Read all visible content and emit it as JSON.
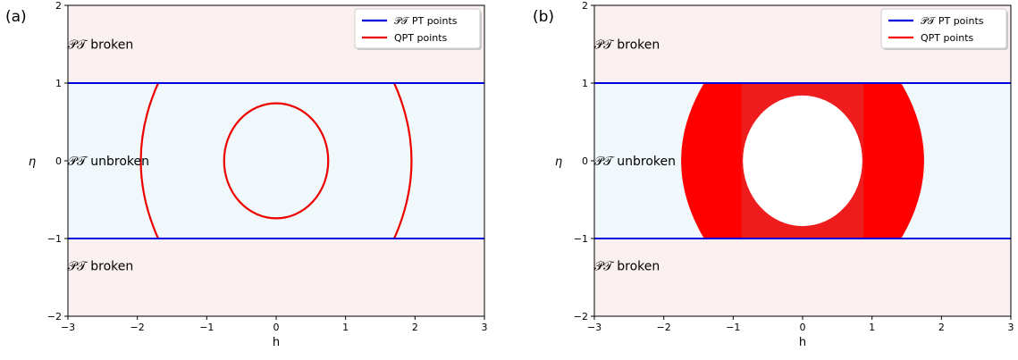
{
  "chart_data": [
    {
      "type": "line",
      "panel_label": "(a)",
      "xlabel": "h",
      "ylabel": "η",
      "xlim": [
        -3,
        3
      ],
      "ylim": [
        -2,
        2
      ],
      "xticks": [
        -3,
        -2,
        -1,
        0,
        1,
        2,
        3
      ],
      "yticks": [
        -2,
        -1,
        0,
        1,
        2
      ],
      "xtick_labels": [
        "−3",
        "−2",
        "−1",
        "0",
        "1",
        "2",
        "3"
      ],
      "ytick_labels": [
        "−2",
        "−1",
        "0",
        "1",
        "2"
      ],
      "grid": false,
      "legend_position": "top-right",
      "region_labels": [
        {
          "text": "𝒫𝒯 broken",
          "h": -3,
          "eta": 1.5
        },
        {
          "text": "𝒫𝒯 unbroken",
          "h": -3,
          "eta": 0
        },
        {
          "text": "𝒫𝒯 broken",
          "h": -3,
          "eta": -1.35
        }
      ],
      "regions": [
        {
          "eta_range": [
            1,
            2
          ],
          "color": "#fbf0f0"
        },
        {
          "eta_range": [
            -1,
            1
          ],
          "color": "#f1f8fb"
        },
        {
          "eta_range": [
            -2,
            -1
          ],
          "color": "#fbf0f0"
        }
      ],
      "series": [
        {
          "name": "𝒫𝒯 PT points",
          "color": "#0000dd",
          "kind": "hlines",
          "eta": [
            1,
            -1
          ]
        },
        {
          "name": "QPT points",
          "color": "#ee0000",
          "kind": "curves",
          "curves": [
            {
              "shape": "ellipse",
              "center": [
                0,
                0
              ],
              "rh": 0.75,
              "reta": 0.74
            },
            {
              "shape": "arc",
              "points": [
                [
                  -1.7,
                  1
                ],
                [
                  -1.95,
                  0
                ],
                [
                  -1.7,
                  -1
                ]
              ]
            },
            {
              "shape": "arc",
              "points": [
                [
                  1.7,
                  1
                ],
                [
                  1.95,
                  0
                ],
                [
                  1.7,
                  -1
                ]
              ]
            }
          ]
        }
      ]
    },
    {
      "type": "area",
      "panel_label": "(b)",
      "xlabel": "h",
      "ylabel": "η",
      "xlim": [
        -3,
        3
      ],
      "ylim": [
        -2,
        2
      ],
      "xticks": [
        -3,
        -2,
        -1,
        0,
        1,
        2,
        3
      ],
      "yticks": [
        -2,
        -1,
        0,
        1,
        2
      ],
      "xtick_labels": [
        "−3",
        "−2",
        "−1",
        "0",
        "1",
        "2",
        "3"
      ],
      "ytick_labels": [
        "−2",
        "−1",
        "0",
        "1",
        "2"
      ],
      "grid": false,
      "legend_position": "top-right",
      "region_labels": [
        {
          "text": "𝒫𝒯 broken",
          "h": -3,
          "eta": 1.5
        },
        {
          "text": "𝒫𝒯 unbroken",
          "h": -3,
          "eta": 0
        },
        {
          "text": "𝒫𝒯 broken",
          "h": -3,
          "eta": -1.35
        }
      ],
      "regions": [
        {
          "eta_range": [
            1,
            2
          ],
          "color": "#fbf0f0"
        },
        {
          "eta_range": [
            -1,
            1
          ],
          "color": "#f1f8fb"
        },
        {
          "eta_range": [
            -2,
            -1
          ],
          "color": "#fbf0f0"
        }
      ],
      "series": [
        {
          "name": "𝒫𝒯 PT points",
          "color": "#0000dd",
          "kind": "hlines",
          "eta": [
            1,
            -1
          ]
        },
        {
          "name": "QPT points",
          "color": "#ff0000",
          "kind": "filled",
          "outer_points": [
            [
              -1.42,
              1
            ],
            [
              -1.75,
              0
            ],
            [
              -1.42,
              -1
            ],
            [
              1.42,
              -1
            ],
            [
              1.75,
              0
            ],
            [
              1.42,
              1
            ]
          ],
          "inner_ellipse": {
            "center": [
              0,
              0
            ],
            "rh": 0.86,
            "reta": 0.84
          },
          "middle_band": {
            "h_range": [
              -0.88,
              0.88
            ],
            "color": "#ee1c1c"
          }
        }
      ]
    }
  ]
}
